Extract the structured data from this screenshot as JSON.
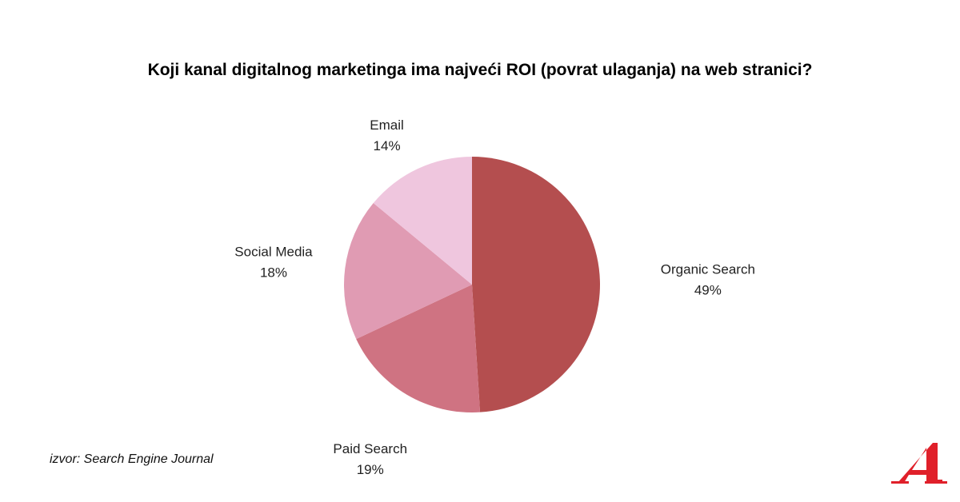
{
  "title": "Koji kanal digitalnog marketinga ima najveći ROI (povrat ulaganja) na web stranici?",
  "source": "izvor: Search Engine Journal",
  "colors": {
    "organic": "#b44e4f",
    "paid": "#cf7382",
    "social": "#e09bb3",
    "email": "#efc6de",
    "logo": "#e0202a"
  },
  "chart_data": {
    "type": "pie",
    "title": "Koji kanal digitalnog marketinga ima najveći ROI (povrat ulaganja) na web stranici?",
    "slices": [
      {
        "name": "Organic Search",
        "value": 49,
        "label": "49%",
        "color": "#b44e4f"
      },
      {
        "name": "Paid Search",
        "value": 19,
        "label": "19%",
        "color": "#cf7382"
      },
      {
        "name": "Social Media",
        "value": 18,
        "label": "18%",
        "color": "#e09bb3"
      },
      {
        "name": "Email",
        "value": 14,
        "label": "14%",
        "color": "#efc6de"
      }
    ],
    "start_angle": "12 o'clock",
    "direction": "clockwise",
    "legend": "none"
  }
}
